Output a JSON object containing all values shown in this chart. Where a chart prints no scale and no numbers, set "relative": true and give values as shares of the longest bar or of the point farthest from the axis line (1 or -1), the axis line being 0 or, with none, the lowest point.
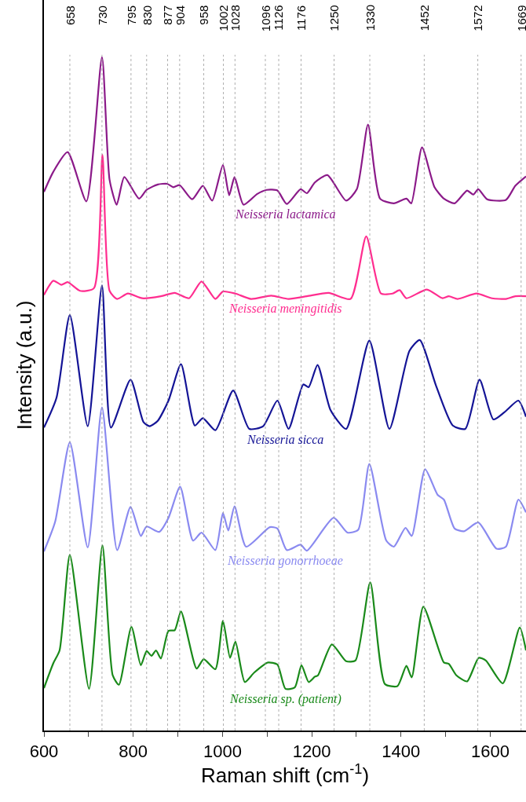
{
  "chart_data": {
    "type": "line",
    "relative": true,
    "xlabel": "Raman shift (cm$^{-1}$)",
    "ylabel": "Intensity (a.u.)",
    "xlim": [
      600,
      1680
    ],
    "xticks": [
      600,
      {
        "value": 700,
        "label": null
      },
      800,
      {
        "value": 900,
        "label": null
      },
      1000,
      {
        "value": 1100,
        "label": null
      },
      1200,
      {
        "value": 1300,
        "label": null
      },
      1400,
      {
        "value": 1500,
        "label": null
      },
      1600
    ],
    "legend": false,
    "line_style": "solid",
    "marker": "none",
    "series": [
      {
        "name": "Neisseria lactamica",
        "color": "#8b1a89",
        "x": [
          600,
          621,
          653,
          695,
          730,
          747,
          763,
          780,
          813,
          830,
          855,
          876,
          890,
          904,
          932,
          956,
          977,
          1001,
          1015,
          1027,
          1047,
          1078,
          1099,
          1123,
          1144,
          1175,
          1189,
          1207,
          1235,
          1277,
          1301,
          1326,
          1353,
          1384,
          1412,
          1423,
          1447,
          1475,
          1496,
          1520,
          1548,
          1562,
          1573,
          1593,
          1635,
          1656,
          1680
        ],
        "values": [
          0.8,
          0.83,
          0.859,
          0.786,
          1.0,
          0.818,
          0.781,
          0.822,
          0.79,
          0.803,
          0.811,
          0.812,
          0.807,
          0.81,
          0.789,
          0.809,
          0.787,
          0.84,
          0.795,
          0.822,
          0.781,
          0.797,
          0.803,
          0.802,
          0.782,
          0.804,
          0.798,
          0.814,
          0.825,
          0.787,
          0.804,
          0.9,
          0.79,
          0.783,
          0.79,
          0.783,
          0.866,
          0.807,
          0.79,
          0.783,
          0.802,
          0.796,
          0.804,
          0.789,
          0.788,
          0.809,
          0.823
        ]
      },
      {
        "name": "Neisseria meningitidis",
        "color": "#ff2d8f",
        "x": [
          600,
          621,
          639,
          653,
          681,
          712,
          731,
          747,
          764,
          788,
          820,
          862,
          893,
          925,
          953,
          984,
          1001,
          1029,
          1064,
          1109,
          1148,
          1189,
          1238,
          1287,
          1322,
          1355,
          1381,
          1397,
          1412,
          1458,
          1493,
          1507,
          1527,
          1569,
          1604,
          1635,
          1656,
          1680
        ],
        "values": [
          0.647,
          0.668,
          0.662,
          0.666,
          0.653,
          0.657,
          0.855,
          0.653,
          0.641,
          0.649,
          0.642,
          0.645,
          0.65,
          0.642,
          0.667,
          0.641,
          0.652,
          0.649,
          0.641,
          0.646,
          0.641,
          0.645,
          0.65,
          0.641,
          0.734,
          0.649,
          0.649,
          0.654,
          0.642,
          0.655,
          0.642,
          0.645,
          0.641,
          0.649,
          0.642,
          0.641,
          0.645,
          0.645
        ]
      },
      {
        "name": "Neisseria sicca",
        "color": "#141496",
        "x": [
          600,
          628,
          658,
          698,
          730,
          750,
          794,
          823,
          837,
          855,
          879,
          907,
          938,
          956,
          984,
          1024,
          1060,
          1091,
          1123,
          1148,
          1181,
          1193,
          1213,
          1242,
          1277,
          1329,
          1374,
          1419,
          1442,
          1478,
          1516,
          1544,
          1576,
          1607,
          1632,
          1663,
          1680
        ],
        "values": [
          0.45,
          0.494,
          0.617,
          0.452,
          0.661,
          0.45,
          0.521,
          0.458,
          0.452,
          0.46,
          0.49,
          0.544,
          0.453,
          0.464,
          0.446,
          0.505,
          0.448,
          0.452,
          0.49,
          0.448,
          0.514,
          0.51,
          0.543,
          0.476,
          0.448,
          0.579,
          0.448,
          0.564,
          0.58,
          0.513,
          0.453,
          0.448,
          0.521,
          0.462,
          0.473,
          0.49,
          0.466
        ]
      },
      {
        "name": "Neisseria gonorrhoeae",
        "color": "#8a8af0",
        "x": [
          600,
          625,
          658,
          698,
          730,
          764,
          794,
          817,
          830,
          858,
          879,
          905,
          934,
          953,
          984,
          1001,
          1013,
          1027,
          1053,
          1106,
          1123,
          1144,
          1175,
          1189,
          1249,
          1280,
          1304,
          1329,
          1367,
          1384,
          1410,
          1424,
          1454,
          1482,
          1496,
          1520,
          1541,
          1573,
          1614,
          1635,
          1663,
          1680
        ],
        "values": [
          0.266,
          0.31,
          0.428,
          0.272,
          0.48,
          0.268,
          0.332,
          0.289,
          0.303,
          0.295,
          0.316,
          0.362,
          0.282,
          0.294,
          0.268,
          0.323,
          0.297,
          0.333,
          0.273,
          0.302,
          0.3,
          0.268,
          0.276,
          0.267,
          0.316,
          0.294,
          0.298,
          0.396,
          0.282,
          0.273,
          0.301,
          0.289,
          0.388,
          0.35,
          0.343,
          0.3,
          0.296,
          0.309,
          0.27,
          0.273,
          0.343,
          0.324
        ]
      },
      {
        "name": "Neisseria sp. (patient)",
        "color": "#1a8a1a",
        "x": [
          600,
          621,
          635,
          658,
          701,
          731,
          754,
          768,
          796,
          817,
          830,
          841,
          851,
          862,
          879,
          893,
          907,
          942,
          958,
          984,
          1001,
          1017,
          1029,
          1050,
          1071,
          1102,
          1123,
          1141,
          1162,
          1177,
          1193,
          1207,
          1214,
          1245,
          1277,
          1298,
          1331,
          1364,
          1392,
          1412,
          1424,
          1450,
          1496,
          1507,
          1524,
          1548,
          1574,
          1590,
          1628,
          1666,
          1680
        ],
        "values": [
          0.063,
          0.1,
          0.119,
          0.261,
          0.062,
          0.275,
          0.082,
          0.068,
          0.154,
          0.097,
          0.118,
          0.111,
          0.119,
          0.107,
          0.148,
          0.149,
          0.177,
          0.092,
          0.106,
          0.091,
          0.163,
          0.108,
          0.132,
          0.072,
          0.086,
          0.101,
          0.098,
          0.062,
          0.064,
          0.097,
          0.072,
          0.08,
          0.082,
          0.128,
          0.103,
          0.104,
          0.22,
          0.069,
          0.066,
          0.096,
          0.079,
          0.184,
          0.101,
          0.099,
          0.082,
          0.073,
          0.108,
          0.104,
          0.07,
          0.153,
          0.119
        ]
      }
    ],
    "ref_lines": [
      {
        "axis": "x",
        "value": 658,
        "label": "658"
      },
      {
        "axis": "x",
        "value": 730,
        "label": "730"
      },
      {
        "axis": "x",
        "value": 795,
        "label": "795"
      },
      {
        "axis": "x",
        "value": 830,
        "label": "830"
      },
      {
        "axis": "x",
        "value": 877,
        "label": "877"
      },
      {
        "axis": "x",
        "value": 904,
        "label": "904"
      },
      {
        "axis": "x",
        "value": 958,
        "label": "958"
      },
      {
        "axis": "x",
        "value": 1002,
        "label": "1002"
      },
      {
        "axis": "x",
        "value": 1028,
        "label": "1028"
      },
      {
        "axis": "x",
        "value": 1096,
        "label": "1096"
      },
      {
        "axis": "x",
        "value": 1126,
        "label": "1126"
      },
      {
        "axis": "x",
        "value": 1176,
        "label": "1176"
      },
      {
        "axis": "x",
        "value": 1250,
        "label": "1250"
      },
      {
        "axis": "x",
        "value": 1330,
        "label": "1330"
      },
      {
        "axis": "x",
        "value": 1452,
        "label": "1452"
      },
      {
        "axis": "x",
        "value": 1572,
        "label": "1572"
      },
      {
        "axis": "x",
        "value": 1669,
        "label": "1669"
      }
    ]
  }
}
